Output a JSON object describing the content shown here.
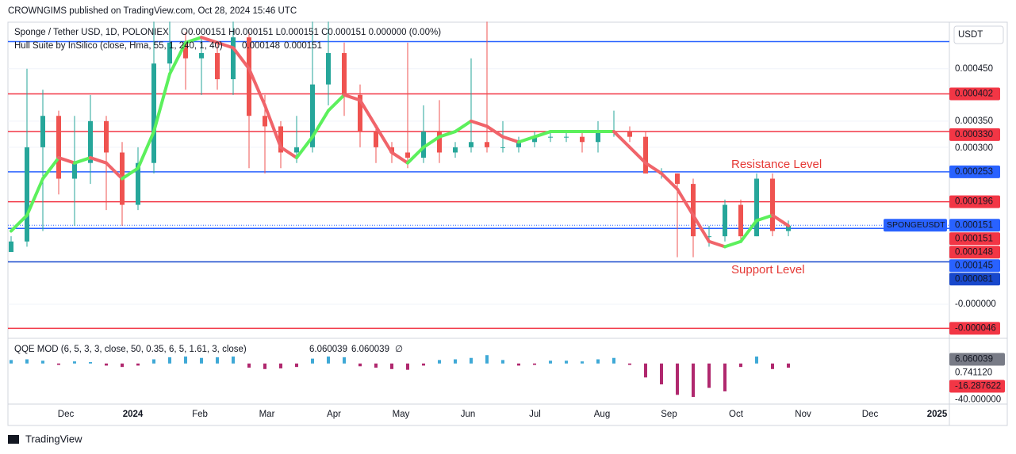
{
  "header": {
    "published": "CROWNGIMS published on TradingView.com, Oct 28, 2024 15:46 UTC"
  },
  "symbol": {
    "name": "Sponge / Tether USD, 1D, POLONIEX",
    "ohlc": "O0.000151 H0.000151 L0.000151 C0.000151 0.000000 (0.00%)"
  },
  "indicator": {
    "name": "Hull Suite by InSilico (close, Hma, 55, 1, 240, 1, 40)",
    "value_1": "0.000148",
    "value_2": "0.000151"
  },
  "currency": "USDT",
  "price_axis": {
    "ylim": [
      -6.2e-05,
      0.000539
    ],
    "ticks": [
      {
        "value": 0.00045,
        "label": "0.000450"
      },
      {
        "value": 0.00035,
        "label": "0.000350"
      },
      {
        "value": 0.0003,
        "label": "0.000300"
      },
      {
        "value": 0,
        "label": "-0.000000"
      }
    ]
  },
  "levels": [
    {
      "value": 0.000502,
      "color": "#2962ff"
    },
    {
      "value": 0.000402,
      "label": "0.000402",
      "color": "#f23645"
    },
    {
      "value": 0.00033,
      "label": "0.000330",
      "color": "#f23645"
    },
    {
      "value": 0.000253,
      "label": "0.000253",
      "color": "#2962ff"
    },
    {
      "value": 0.000196,
      "label": "0.000196",
      "color": "#f23645"
    },
    {
      "value": 0.000145,
      "label": "0.000145",
      "color": "#2962ff"
    },
    {
      "value": 8.1e-05,
      "label": "0.000081",
      "color": "#1848cc"
    },
    {
      "value": -4.6e-05,
      "label": "-0.000046",
      "color": "#f23645"
    }
  ],
  "last_price": {
    "symbol": "SPONGEUSDT",
    "value": 0.000151,
    "label": "0.000151",
    "color": "#2962ff"
  },
  "price_badges": [
    {
      "value": 0.000151,
      "label": "0.000151",
      "color": "#f23645"
    },
    {
      "value": 0.000148,
      "label": "0.000148",
      "color": "#f23645"
    }
  ],
  "annotations": {
    "resistance": "Resistance Level",
    "support": "Support Level"
  },
  "candles": {
    "open": [
      0.0001,
      0.00012,
      0.0003,
      0.00036,
      0.00024,
      0.00027,
      0.00035,
      0.00029,
      0.00019,
      0.00027,
      0.00046,
      0.0005,
      0.00047,
      0.00048,
      0.00043,
      0.00051,
      0.00036,
      0.00034,
      0.00029,
      0.0003,
      0.00042,
      0.00048,
      0.0004,
      0.00033,
      0.0003,
      0.00029,
      0.00028,
      0.00033,
      0.00029,
      0.0003,
      0.00031,
      0.0003,
      0.0003,
      0.00031,
      0.00032,
      0.00032,
      0.00032,
      0.00031,
      0.00033,
      0.00033,
      0.00032,
      0.00025,
      0.00025,
      0.00023,
      0.00013,
      0.00013,
      0.00019,
      0.00013,
      0.00024,
      0.00014
    ],
    "high": [
      0.00013,
      0.00045,
      0.00041,
      0.00037,
      0.00036,
      0.0004,
      0.00036,
      0.00031,
      0.0003,
      0.00054,
      0.00054,
      0.00052,
      0.00051,
      0.0005,
      0.00054,
      0.00052,
      0.0004,
      0.00035,
      0.00036,
      0.00054,
      0.00054,
      0.0005,
      0.00042,
      0.00034,
      0.00031,
      0.0005,
      0.00038,
      0.00039,
      0.00031,
      0.00047,
      0.00054,
      0.00035,
      0.00032,
      0.00033,
      0.00033,
      0.00033,
      0.00033,
      0.00035,
      0.00037,
      0.00034,
      0.00033,
      0.00026,
      0.00025,
      0.00024,
      0.00015,
      0.0002,
      0.0002,
      0.00025,
      0.00025,
      0.00016
    ],
    "low": [
      0.0001,
      0.00011,
      0.00014,
      0.00021,
      0.00015,
      0.00023,
      0.00018,
      0.00015,
      0.00018,
      0.00025,
      0.00044,
      0.00041,
      0.0004,
      0.00041,
      0.0004,
      0.00026,
      0.00025,
      0.00026,
      0.00027,
      0.00029,
      0.00038,
      0.00036,
      0.0003,
      0.00027,
      0.00027,
      0.00026,
      0.00027,
      0.00027,
      0.00028,
      0.00029,
      0.00029,
      0.00029,
      0.00029,
      0.0003,
      0.00031,
      0.00031,
      0.00029,
      0.00029,
      0.00032,
      0.00031,
      0.00025,
      0.00024,
      9e-05,
      9e-05,
      0.00011,
      0.00012,
      0.00012,
      0.00013,
      0.00013,
      0.00013
    ],
    "close": [
      0.00012,
      0.0003,
      0.00036,
      0.00024,
      0.00027,
      0.00035,
      0.00029,
      0.00019,
      0.00027,
      0.00046,
      0.0005,
      0.00047,
      0.00048,
      0.00043,
      0.00051,
      0.00036,
      0.00034,
      0.00029,
      0.0003,
      0.00042,
      0.00048,
      0.0004,
      0.00033,
      0.0003,
      0.00029,
      0.00028,
      0.00033,
      0.00029,
      0.0003,
      0.00031,
      0.0003,
      0.0003,
      0.00031,
      0.00032,
      0.00032,
      0.00032,
      0.00031,
      0.00033,
      0.00033,
      0.00032,
      0.00025,
      0.00025,
      0.00023,
      0.00013,
      0.00013,
      0.00019,
      0.00013,
      0.00024,
      0.00014,
      0.00015
    ]
  },
  "hull": {
    "up_color": "#5cf05c",
    "down_color": "#f0646a",
    "values": [
      0.00014,
      0.00017,
      0.00024,
      0.00028,
      0.00027,
      0.00028,
      0.00027,
      0.00024,
      0.00026,
      0.00033,
      0.00044,
      0.0005,
      0.00051,
      0.0005,
      0.00049,
      0.00045,
      0.00038,
      0.0003,
      0.00028,
      0.00032,
      0.00037,
      0.0004,
      0.00039,
      0.00034,
      0.00029,
      0.00027,
      0.0003,
      0.00032,
      0.00033,
      0.00035,
      0.00034,
      0.00032,
      0.00031,
      0.00032,
      0.00033,
      0.00033,
      0.00033,
      0.00033,
      0.00033,
      0.0003,
      0.00027,
      0.00025,
      0.00022,
      0.00017,
      0.00012,
      0.00011,
      0.00012,
      0.00016,
      0.00017,
      0.00015
    ]
  },
  "qqe": {
    "name": "QQE MOD (6, 5, 3, 3, close, 50, 0.35, 6, 5, 1.61, 3, close)",
    "value_gray": "6.060039",
    "value_blue": "6.060039",
    "empty": "∅",
    "ylim": [
      -56,
      35
    ],
    "pos_color": "#3fa9d6",
    "neg_color": "#b0286e",
    "values": [
      5,
      6,
      4,
      -2,
      3,
      2,
      -3,
      -5,
      -3,
      6,
      9,
      10,
      8,
      9,
      10,
      -6,
      -8,
      -7,
      -5,
      7,
      10,
      9,
      -4,
      -6,
      -8,
      -9,
      -3,
      5,
      6,
      8,
      12,
      5,
      -3,
      -2,
      4,
      4,
      3,
      6,
      8,
      -2,
      -20,
      -30,
      -45,
      -48,
      -35,
      -40,
      -5,
      10,
      -8,
      -6
    ],
    "ticks": [
      {
        "value": 6.060039,
        "label": "6.060039",
        "bg": "#787b86"
      },
      {
        "value": 0.74112,
        "label": "0.741120"
      },
      {
        "value": -16.287622,
        "label": "-16.287622",
        "bg": "#f23645"
      },
      {
        "value": -40,
        "label": "-40.000000"
      }
    ]
  },
  "time_axis": {
    "labels": [
      "Dec",
      "2024",
      "Feb",
      "Mar",
      "Apr",
      "May",
      "Jun",
      "Jul",
      "Aug",
      "Sep",
      "Oct",
      "Nov",
      "Dec",
      "2025"
    ]
  },
  "footer": {
    "brand": "TradingView"
  }
}
